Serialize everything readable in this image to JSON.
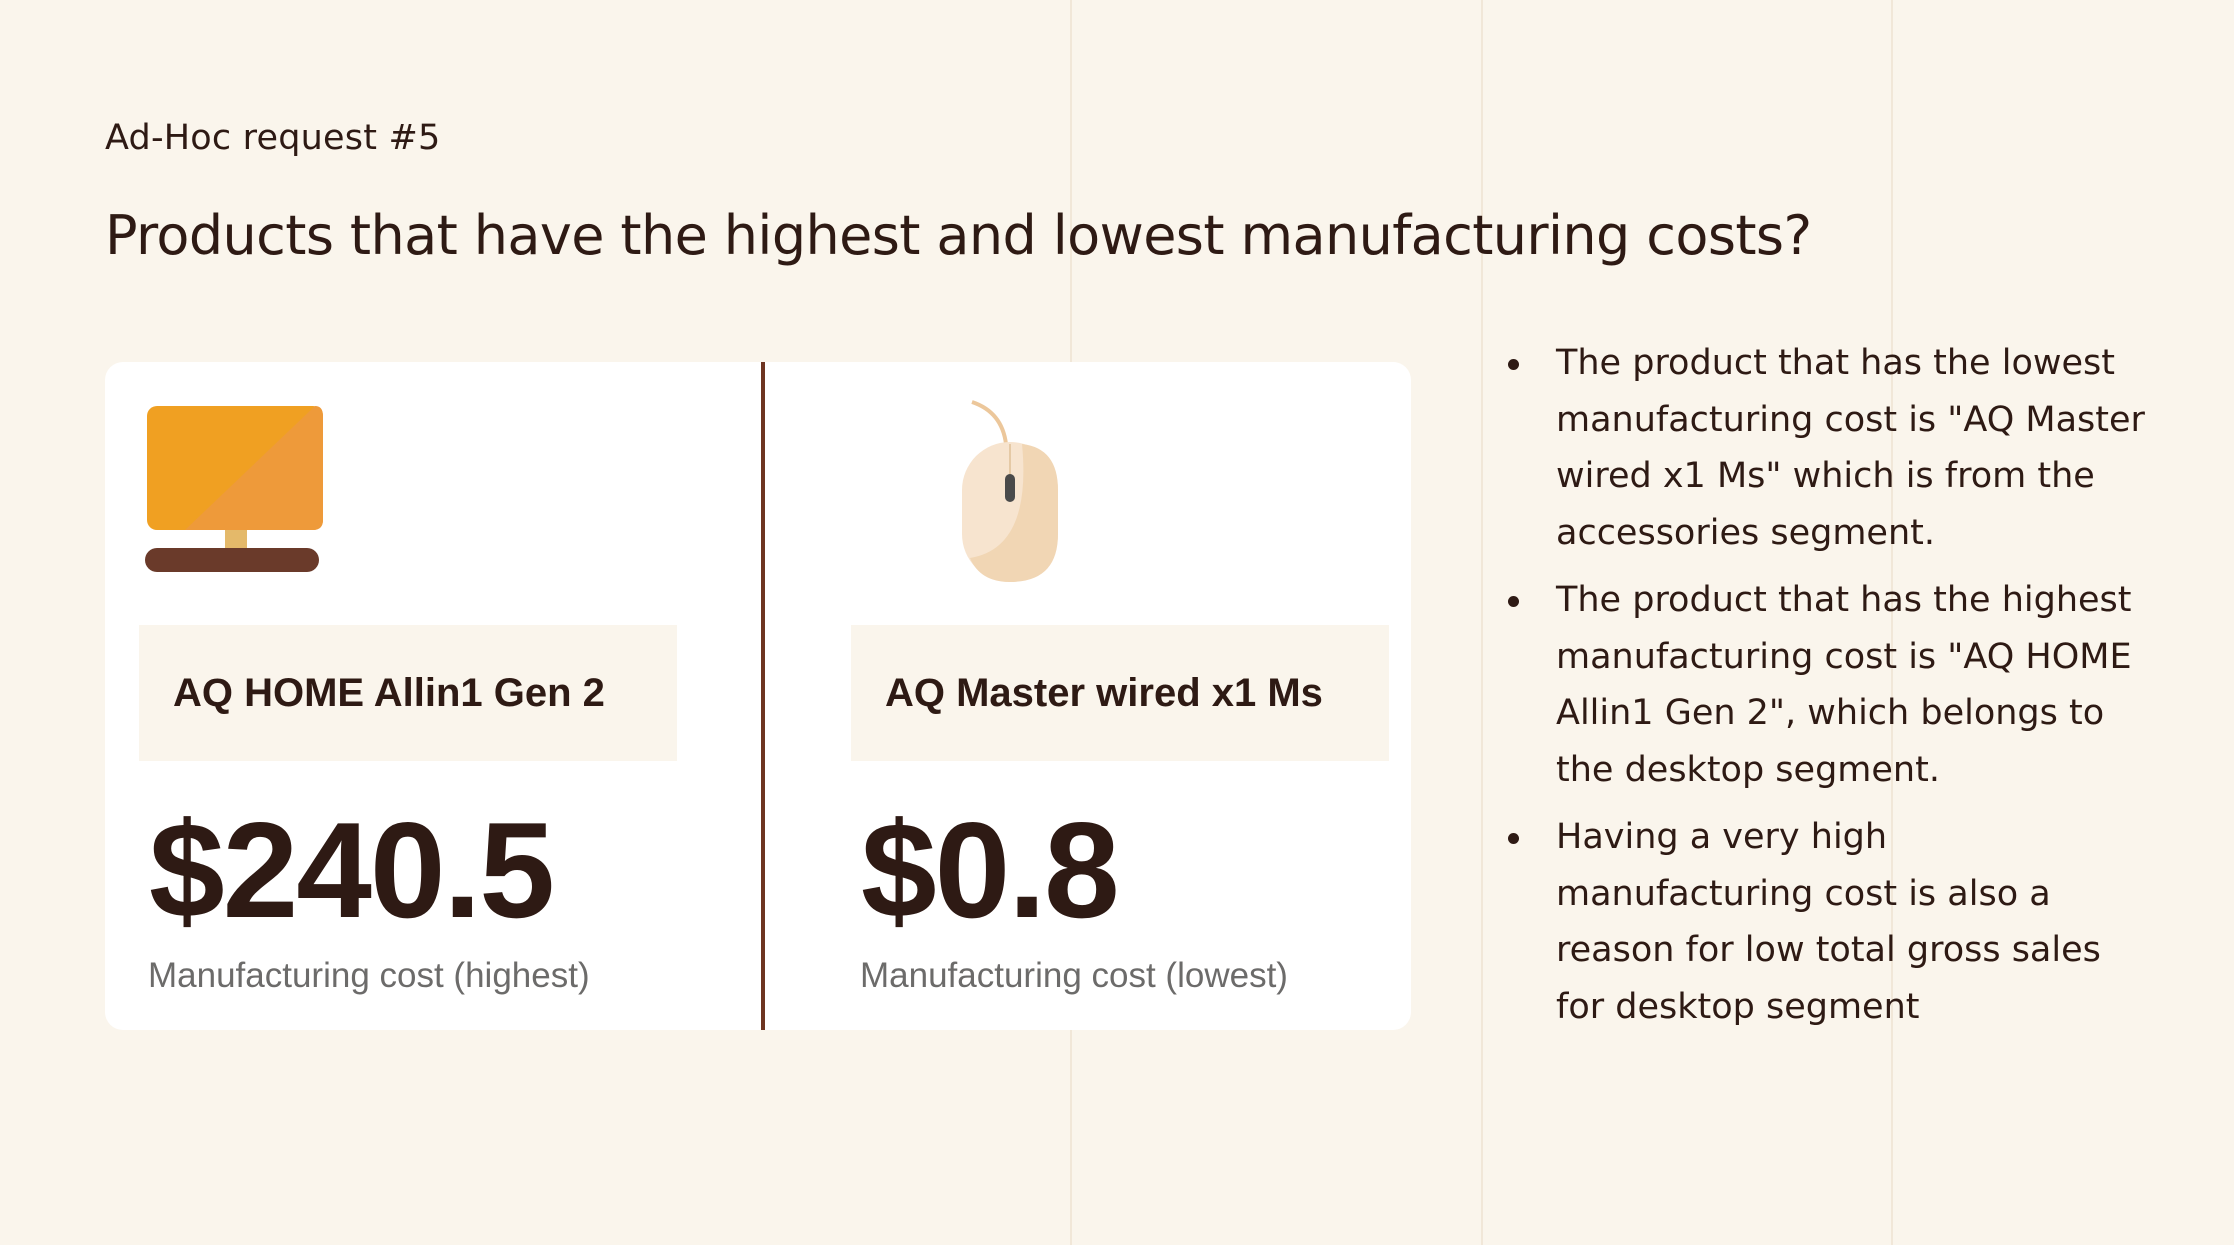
{
  "header": {
    "subtitle": "Ad-Hoc request #5",
    "title": "Products that have the highest and lowest manufacturing costs?"
  },
  "cards": [
    {
      "product_name": "AQ HOME Allin1 Gen 2",
      "value": "$240.5",
      "caption": "Manufacturing cost (highest)",
      "icon": "desktop-monitor-icon"
    },
    {
      "product_name": "AQ Master wired x1 Ms",
      "value": "$0.8",
      "caption": "Manufacturing cost (lowest)",
      "icon": "computer-mouse-icon"
    }
  ],
  "insights": [
    "The product that has the lowest manufacturing cost is \"AQ Master wired x1 Ms\" which is from the accessories segment.",
    "The product that has the highest manufacturing cost is \"AQ HOME Allin1 Gen 2\", which belongs to the desktop segment.",
    "Having a very high manufacturing cost is also a reason for low total gross sales for desktop segment"
  ],
  "colors": {
    "background": "#faf5ec",
    "card": "#ffffff",
    "divider": "#6e3521",
    "text": "#2e1a14",
    "caption": "#6c6b6a",
    "monitor_orange": "#f2a224",
    "monitor_stand": "#6a3a2a"
  }
}
